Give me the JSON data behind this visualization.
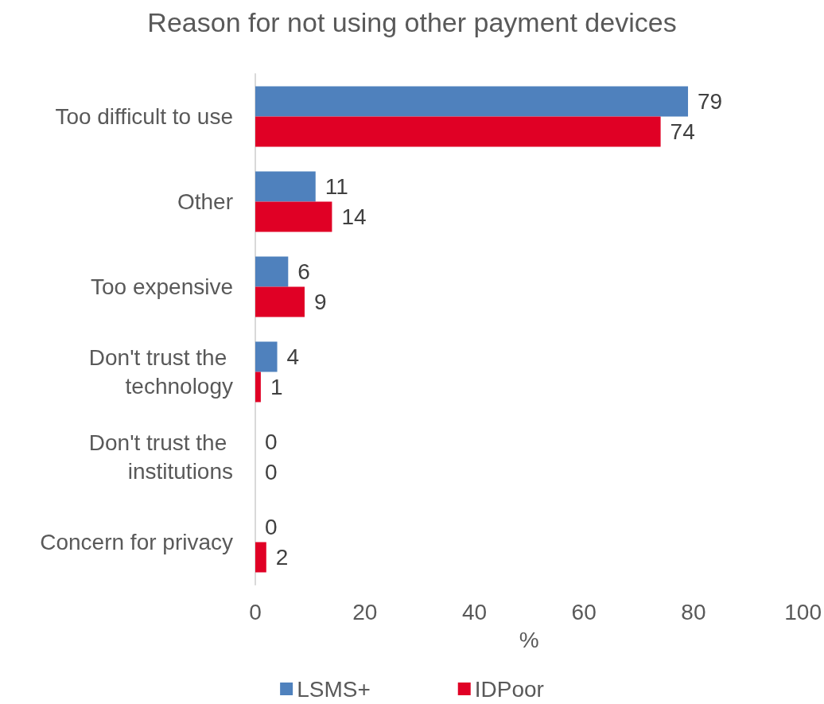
{
  "chart_data": {
    "type": "bar",
    "orientation": "horizontal",
    "title": "Reason for not using other payment devices",
    "xlabel": "%",
    "categories": [
      "Too difficult to use",
      "Other",
      "Too expensive",
      "Don't trust the technology",
      "Don't trust the institutions",
      "Concern for privacy"
    ],
    "series": [
      {
        "name": "LSMS+",
        "color": "#4f81bd",
        "values": [
          79,
          11,
          6,
          4,
          0,
          0
        ]
      },
      {
        "name": "IDPoor",
        "color": "#e00025",
        "values": [
          74,
          14,
          9,
          1,
          0,
          2
        ]
      }
    ],
    "xlim": [
      0,
      100
    ],
    "xticks": [
      0,
      20,
      40,
      60,
      80,
      100
    ],
    "data_labels": true,
    "grid": false,
    "legend": "bottom"
  }
}
